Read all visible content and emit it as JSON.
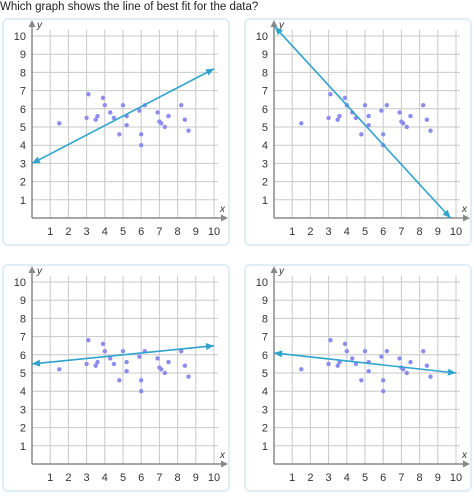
{
  "question": "Which graph shows the line of best fit for the data?",
  "colors": {
    "point": "#8c8cf0",
    "line": "#2ea3cc",
    "grid": "#c8c8c8",
    "axis": "#888888",
    "card_border": "#dfeef6"
  },
  "chart_data": [
    {
      "type": "scatter",
      "option": "top-left",
      "xlabel": "x",
      "ylabel": "y",
      "xlim": [
        0,
        10
      ],
      "ylim": [
        0,
        10
      ],
      "x_ticks": [
        "1",
        "2",
        "3",
        "4",
        "5",
        "6",
        "7",
        "8",
        "9",
        "10"
      ],
      "y_ticks": [
        "1",
        "2",
        "3",
        "4",
        "5",
        "6",
        "7",
        "8",
        "9",
        "10"
      ],
      "points": [
        [
          1.5,
          5.2
        ],
        [
          3,
          5.5
        ],
        [
          3.1,
          6.8
        ],
        [
          3.5,
          5.4
        ],
        [
          3.6,
          5.6
        ],
        [
          3.9,
          6.6
        ],
        [
          4,
          6.2
        ],
        [
          4.3,
          5.8
        ],
        [
          4.5,
          5.5
        ],
        [
          4.8,
          4.6
        ],
        [
          5,
          6.2
        ],
        [
          5.2,
          5.1
        ],
        [
          5.2,
          5.6
        ],
        [
          5.9,
          5.9
        ],
        [
          6,
          4
        ],
        [
          6,
          4.6
        ],
        [
          6.2,
          6.2
        ],
        [
          6.9,
          5.8
        ],
        [
          7,
          5.3
        ],
        [
          7.1,
          5.2
        ],
        [
          7.3,
          5
        ],
        [
          7.5,
          5.6
        ],
        [
          8.2,
          6.2
        ],
        [
          8.4,
          5.4
        ],
        [
          8.6,
          4.8
        ]
      ],
      "line": [
        [
          0,
          3
        ],
        [
          10,
          8.2
        ]
      ]
    },
    {
      "type": "scatter",
      "option": "top-right",
      "xlabel": "x",
      "ylabel": "y",
      "xlim": [
        0,
        10
      ],
      "ylim": [
        0,
        10
      ],
      "x_ticks": [
        "1",
        "2",
        "3",
        "4",
        "5",
        "6",
        "7",
        "8",
        "9",
        "10"
      ],
      "y_ticks": [
        "1",
        "2",
        "3",
        "4",
        "5",
        "6",
        "7",
        "8",
        "9",
        "10"
      ],
      "points": [
        [
          1.5,
          5.2
        ],
        [
          3,
          5.5
        ],
        [
          3.1,
          6.8
        ],
        [
          3.5,
          5.4
        ],
        [
          3.6,
          5.6
        ],
        [
          3.9,
          6.6
        ],
        [
          4,
          6.2
        ],
        [
          4.3,
          5.8
        ],
        [
          4.5,
          5.5
        ],
        [
          4.8,
          4.6
        ],
        [
          5,
          6.2
        ],
        [
          5.2,
          5.1
        ],
        [
          5.2,
          5.6
        ],
        [
          5.9,
          5.9
        ],
        [
          6,
          4
        ],
        [
          6,
          4.6
        ],
        [
          6.2,
          6.2
        ],
        [
          6.9,
          5.8
        ],
        [
          7,
          5.3
        ],
        [
          7.1,
          5.2
        ],
        [
          7.3,
          5
        ],
        [
          7.5,
          5.6
        ],
        [
          8.2,
          6.2
        ],
        [
          8.4,
          5.4
        ],
        [
          8.6,
          4.8
        ]
      ],
      "line": [
        [
          0.05,
          10.5
        ],
        [
          9.7,
          0
        ]
      ]
    },
    {
      "type": "scatter",
      "option": "bottom-left",
      "xlabel": "x",
      "ylabel": "y",
      "xlim": [
        0,
        10
      ],
      "ylim": [
        0,
        10
      ],
      "x_ticks": [
        "1",
        "2",
        "3",
        "4",
        "5",
        "6",
        "7",
        "8",
        "9",
        "10"
      ],
      "y_ticks": [
        "1",
        "2",
        "3",
        "4",
        "5",
        "6",
        "7",
        "8",
        "9",
        "10"
      ],
      "points": [
        [
          1.5,
          5.2
        ],
        [
          3,
          5.5
        ],
        [
          3.1,
          6.8
        ],
        [
          3.5,
          5.4
        ],
        [
          3.6,
          5.6
        ],
        [
          3.9,
          6.6
        ],
        [
          4,
          6.2
        ],
        [
          4.3,
          5.8
        ],
        [
          4.5,
          5.5
        ],
        [
          4.8,
          4.6
        ],
        [
          5,
          6.2
        ],
        [
          5.2,
          5.1
        ],
        [
          5.2,
          5.6
        ],
        [
          5.9,
          5.9
        ],
        [
          6,
          4
        ],
        [
          6,
          4.6
        ],
        [
          6.2,
          6.2
        ],
        [
          6.9,
          5.8
        ],
        [
          7,
          5.3
        ],
        [
          7.1,
          5.2
        ],
        [
          7.3,
          5
        ],
        [
          7.5,
          5.6
        ],
        [
          8.2,
          6.2
        ],
        [
          8.4,
          5.4
        ],
        [
          8.6,
          4.8
        ]
      ],
      "line": [
        [
          0,
          5.5
        ],
        [
          10,
          6.5
        ]
      ]
    },
    {
      "type": "scatter",
      "option": "bottom-right",
      "xlabel": "x",
      "ylabel": "y",
      "xlim": [
        0,
        10
      ],
      "ylim": [
        0,
        10
      ],
      "x_ticks": [
        "1",
        "2",
        "3",
        "4",
        "5",
        "6",
        "7",
        "8",
        "9",
        "10"
      ],
      "y_ticks": [
        "1",
        "2",
        "3",
        "4",
        "5",
        "6",
        "7",
        "8",
        "9",
        "10"
      ],
      "points": [
        [
          1.5,
          5.2
        ],
        [
          3,
          5.5
        ],
        [
          3.1,
          6.8
        ],
        [
          3.5,
          5.4
        ],
        [
          3.6,
          5.6
        ],
        [
          3.9,
          6.6
        ],
        [
          4,
          6.2
        ],
        [
          4.3,
          5.8
        ],
        [
          4.5,
          5.5
        ],
        [
          4.8,
          4.6
        ],
        [
          5,
          6.2
        ],
        [
          5.2,
          5.1
        ],
        [
          5.2,
          5.6
        ],
        [
          5.9,
          5.9
        ],
        [
          6,
          4
        ],
        [
          6,
          4.6
        ],
        [
          6.2,
          6.2
        ],
        [
          6.9,
          5.8
        ],
        [
          7,
          5.3
        ],
        [
          7.1,
          5.2
        ],
        [
          7.3,
          5
        ],
        [
          7.5,
          5.6
        ],
        [
          8.2,
          6.2
        ],
        [
          8.4,
          5.4
        ],
        [
          8.6,
          4.8
        ]
      ],
      "line": [
        [
          0,
          6.1
        ],
        [
          10,
          5
        ]
      ]
    }
  ]
}
